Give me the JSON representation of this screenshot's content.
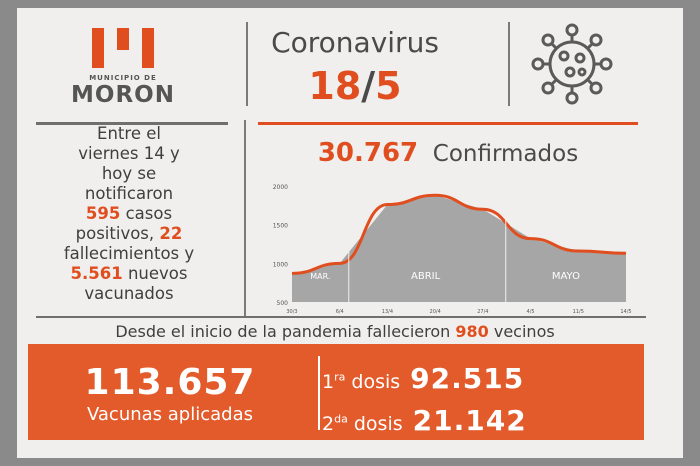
{
  "header": {
    "logo_subtitle": "MUNICIPIO DE",
    "logo_name": "MORON",
    "title": "Coronavirus",
    "date_day": "18",
    "date_sep": "/",
    "date_month": "5"
  },
  "summary": {
    "line1": "Entre el",
    "line2": "viernes 14 y",
    "line3": "hoy se",
    "line4": "notificaron",
    "cases_value": "595",
    "cases_label": " casos",
    "line6_a": "positivos, ",
    "deaths_value": "22",
    "line7": "fallecimientos y",
    "vaccinated_value": "5.561",
    "vaccinated_label": " nuevos",
    "line9": "vacunados"
  },
  "confirmed": {
    "value": "30.767",
    "label": "Confirmados"
  },
  "chart_data": {
    "type": "area",
    "x": [
      "30/3",
      "6/4",
      "13/4",
      "20/4",
      "27/4",
      "4/5",
      "11/5",
      "14/5"
    ],
    "y_ticks": [
      "2000",
      "1500",
      "1000",
      "500"
    ],
    "ylim": [
      500,
      2000
    ],
    "values": [
      870,
      1000,
      1760,
      1880,
      1700,
      1320,
      1160,
      1130
    ],
    "month_labels": [
      "MAR.",
      "ABRIL",
      "MAYO"
    ],
    "colors": {
      "fill": "#a6a6a6",
      "line": "#e04e1f"
    }
  },
  "deaths_total": {
    "text_before": "Desde el inicio de la pandemia fallecieron ",
    "value": "980",
    "text_after": " vecinos"
  },
  "vaccines": {
    "total": "113.657",
    "total_label": "Vacunas aplicadas",
    "dose1_ordinal": "1",
    "dose1_sup": "ra",
    "dose1_label": " dosis",
    "dose1_value": "92.515",
    "dose2_ordinal": "2",
    "dose2_sup": "da",
    "dose2_label": " dosis",
    "dose2_value": "21.142"
  },
  "colors": {
    "accent": "#e04e1f",
    "text": "#4a4a4a",
    "background": "#f0efed"
  }
}
